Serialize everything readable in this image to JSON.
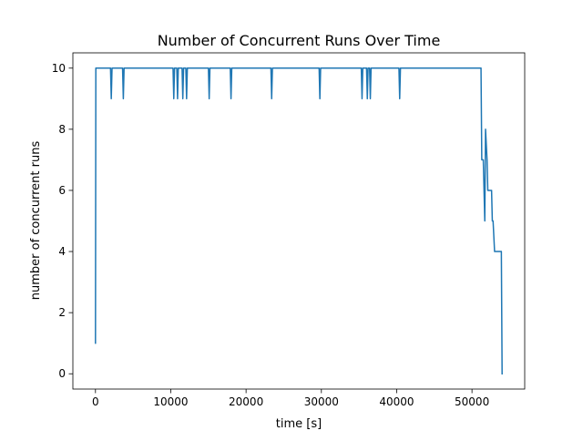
{
  "chart_data": {
    "type": "line",
    "title": "Number of Concurrent Runs Over Time",
    "xlabel": "time [s]",
    "ylabel": "number of concurrent runs",
    "xlim": [
      -3000,
      57000
    ],
    "ylim": [
      -0.5,
      10.5
    ],
    "xticks": [
      0,
      10000,
      20000,
      30000,
      40000,
      50000
    ],
    "yticks": [
      0,
      2,
      4,
      6,
      8,
      10
    ],
    "xtick_labels": [
      "0",
      "10000",
      "20000",
      "30000",
      "40000",
      "50000"
    ],
    "ytick_labels": [
      "0",
      "2",
      "4",
      "6",
      "8",
      "10"
    ],
    "grid": false,
    "legend": "none",
    "series": [
      {
        "color": "#1f77b4",
        "x": [
          0,
          50,
          2000,
          2100,
          2200,
          3600,
          3700,
          3800,
          10300,
          10400,
          10500,
          10800,
          10900,
          11000,
          11500,
          11600,
          11700,
          12000,
          12100,
          12200,
          15000,
          15100,
          15200,
          17900,
          18000,
          18100,
          23300,
          23400,
          23500,
          29700,
          29800,
          29900,
          35300,
          35400,
          35500,
          36000,
          36100,
          36200,
          36400,
          36500,
          36600,
          40300,
          40400,
          40500,
          51200,
          51300,
          51500,
          51700,
          51800,
          52000,
          52100,
          52200,
          52600,
          52700,
          52800,
          53000,
          53100,
          53800,
          53900,
          54000
        ],
        "y": [
          1,
          10,
          10,
          9,
          10,
          10,
          9,
          10,
          10,
          9,
          10,
          10,
          9,
          10,
          10,
          9,
          10,
          10,
          9,
          10,
          10,
          9,
          10,
          10,
          9,
          10,
          10,
          9,
          10,
          10,
          9,
          10,
          10,
          9,
          10,
          10,
          9,
          10,
          10,
          9,
          10,
          10,
          9,
          10,
          10,
          7,
          7,
          5,
          8,
          7,
          6,
          6,
          6,
          5,
          5,
          4,
          4,
          4,
          4,
          0
        ]
      }
    ]
  }
}
